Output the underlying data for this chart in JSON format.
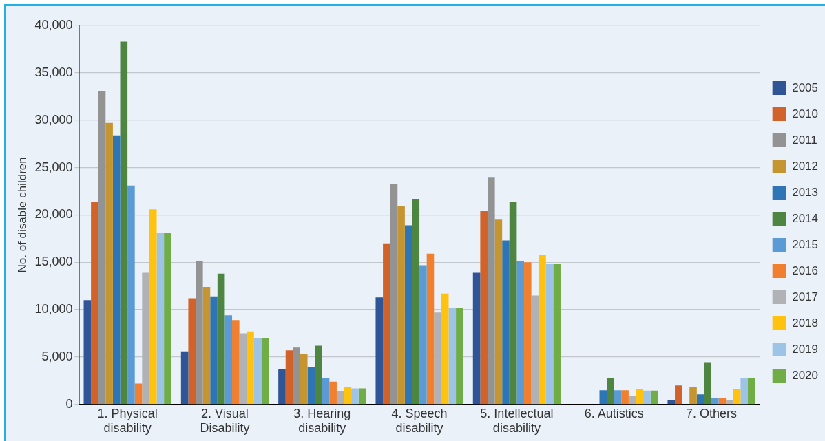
{
  "chart_data": {
    "type": "bar",
    "ylabel": "No. of disable children",
    "categories": [
      "1. Physical\ndisability",
      "2. Visual\nDisability",
      "3. Hearing\ndisability",
      "4. Speech\ndisability",
      "5. Intellectual\ndisability",
      "6. Autistics",
      "7. Others"
    ],
    "series": [
      {
        "name": "2005",
        "color": "#2f5597",
        "values": [
          11000,
          5600,
          3700,
          11300,
          13900,
          null,
          430
        ]
      },
      {
        "name": "2010",
        "color": "#d0622a",
        "values": [
          21400,
          11200,
          5700,
          17000,
          20400,
          null,
          2000
        ]
      },
      {
        "name": "2011",
        "color": "#939393",
        "values": [
          33100,
          15100,
          6000,
          23300,
          24000,
          null,
          null
        ]
      },
      {
        "name": "2012",
        "color": "#c59531",
        "values": [
          29700,
          12400,
          5300,
          20900,
          19500,
          null,
          1850
        ]
      },
      {
        "name": "2013",
        "color": "#2e75b6",
        "values": [
          28400,
          11400,
          3900,
          18900,
          17300,
          1500,
          1050
        ]
      },
      {
        "name": "2014",
        "color": "#4e8540",
        "values": [
          38300,
          13800,
          6200,
          21700,
          21400,
          2800,
          4450
        ]
      },
      {
        "name": "2015",
        "color": "#5b9bd5",
        "values": [
          23100,
          9400,
          2800,
          14700,
          15100,
          1500,
          700
        ]
      },
      {
        "name": "2016",
        "color": "#f07f2f",
        "values": [
          2200,
          8900,
          2400,
          15900,
          15000,
          1500,
          700
        ]
      },
      {
        "name": "2017",
        "color": "#b0b2b5",
        "values": [
          13900,
          7500,
          1400,
          9700,
          11500,
          850,
          450
        ]
      },
      {
        "name": "2018",
        "color": "#ffc20e",
        "values": [
          20600,
          7700,
          1800,
          11700,
          15800,
          1650,
          1650
        ]
      },
      {
        "name": "2019",
        "color": "#9dc3e6",
        "values": [
          18100,
          7000,
          1700,
          10200,
          14800,
          1450,
          2800
        ]
      },
      {
        "name": "2020",
        "color": "#70ad47",
        "values": [
          18100,
          7000,
          1700,
          10200,
          14800,
          1450,
          2800
        ]
      }
    ],
    "ylim": [
      0,
      40000
    ],
    "yticks": [
      {
        "value": 0,
        "label": "0"
      },
      {
        "value": 5000,
        "label": "5,000"
      },
      {
        "value": 10000,
        "label": "10,000"
      },
      {
        "value": 15000,
        "label": "15,000"
      },
      {
        "value": 20000,
        "label": "20,000"
      },
      {
        "value": 25000,
        "label": "25,000"
      },
      {
        "value": 30000,
        "label": "30,000"
      },
      {
        "value": 35000,
        "label": "35,000"
      },
      {
        "value": 40000,
        "label": "40,000"
      }
    ],
    "grid": "y",
    "legend": "right"
  }
}
